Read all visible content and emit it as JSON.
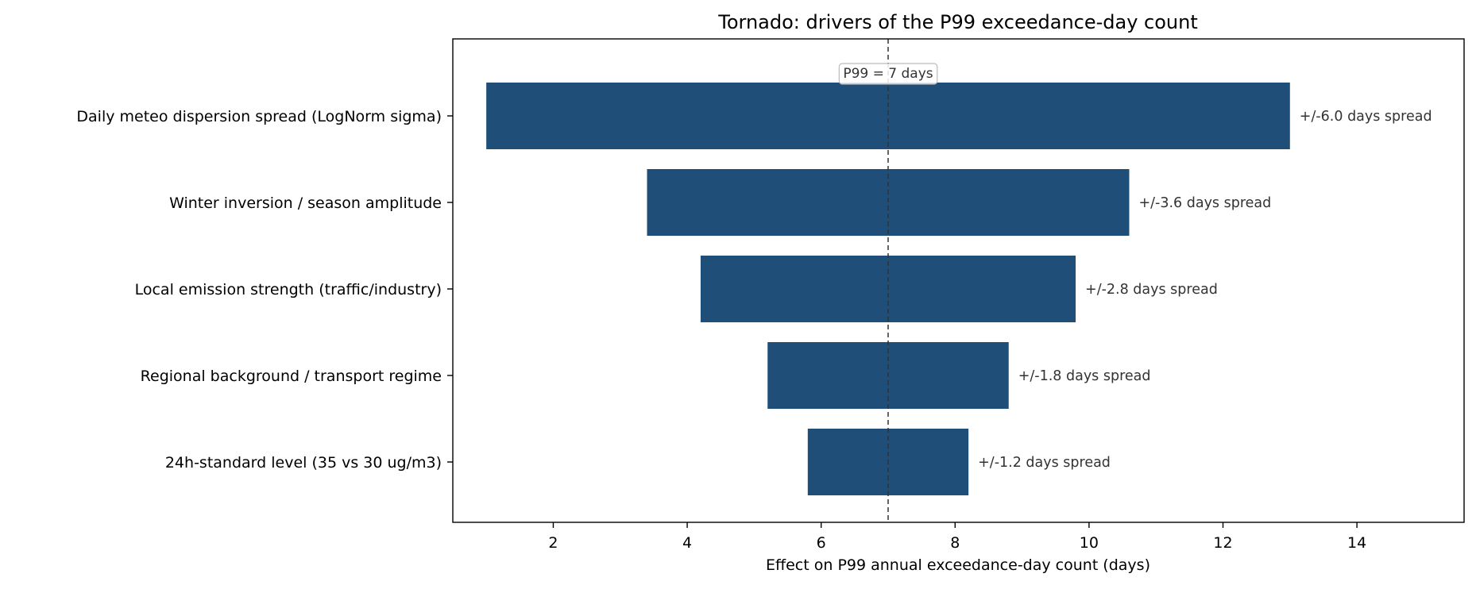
{
  "chart_data": {
    "type": "bar",
    "orientation": "horizontal",
    "title": "Tornado: drivers of the P99 exceedance-day count",
    "xlabel": "Effect on P99 annual exceedance-day count  (days)",
    "ylabel": "",
    "xlim": [
      0.5,
      15.6
    ],
    "xticks": [
      2,
      4,
      6,
      8,
      10,
      12,
      14
    ],
    "grid": false,
    "legend": "none",
    "bar_color": "#1f4e79",
    "reference_line": {
      "value": 7,
      "label": "P99 = 7 days",
      "style": "dashed",
      "color": "#333333"
    },
    "categories": [
      "Daily meteo dispersion spread (LogNorm sigma)",
      "Winter inversion / season amplitude",
      "Local emission strength (traffic/industry)",
      "Regional background / transport regime",
      "24h-standard level (35 vs 30 ug/m3)"
    ],
    "low": [
      1.0,
      3.4,
      4.2,
      5.2,
      5.8
    ],
    "high": [
      13.0,
      10.6,
      9.8,
      8.8,
      8.2
    ],
    "bar_labels": [
      "+/-6.0 days spread",
      "+/-3.6 days spread",
      "+/-2.8 days spread",
      "+/-1.8 days spread",
      "+/-1.2 days spread"
    ]
  }
}
